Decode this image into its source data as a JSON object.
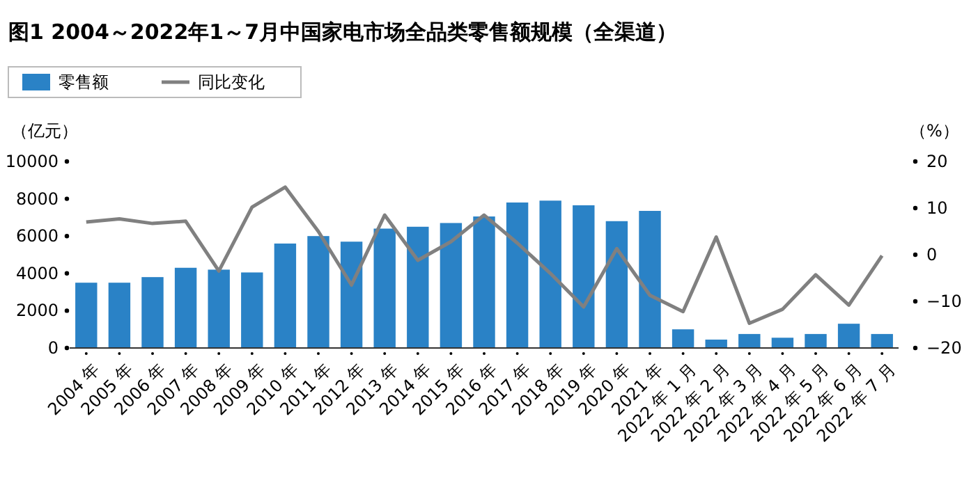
{
  "chart_data": {
    "type": "bar",
    "title": "图1  2004～2022年1～7月中国家电市场全品类零售额规模（全渠道）",
    "ylabel": "（亿元）",
    "y2label": "（%）",
    "categories": [
      "2004 年",
      "2005 年",
      "2006 年",
      "2007 年",
      "2008 年",
      "2009 年",
      "2010 年",
      "2011 年",
      "2012 年",
      "2013 年",
      "2014 年",
      "2015 年",
      "2016 年",
      "2017 年",
      "2018 年",
      "2019 年",
      "2020 年",
      "2021 年",
      "2022 年 1 月",
      "2022 年 2 月",
      "2022 年 3 月",
      "2022 年 4 月",
      "2022 年 5 月",
      "2022 年 6 月",
      "2022 年 7 月"
    ],
    "series": [
      {
        "name": "零售额",
        "color": "#2a82c6",
        "values": [
          3500,
          3500,
          3800,
          4300,
          4200,
          4050,
          5600,
          6000,
          5700,
          6400,
          6500,
          6700,
          7050,
          7800,
          7900,
          7650,
          6800,
          7350,
          1000,
          450,
          750,
          550,
          750,
          1300,
          750
        ]
      },
      {
        "name": "同比变化",
        "type": "line",
        "axis": "y2",
        "color": "#808080",
        "values": [
          7.0,
          7.7,
          6.7,
          7.2,
          -3.5,
          10.2,
          14.5,
          5.0,
          -6.5,
          8.5,
          -1.2,
          2.8,
          8.5,
          2.5,
          -4.0,
          -11.2,
          1.3,
          -8.7,
          -12.2,
          3.8,
          -14.7,
          -11.7,
          -4.3,
          -10.8,
          -0.2
        ]
      }
    ],
    "ylim": [
      0,
      10000
    ],
    "yticks": [
      0,
      2000,
      4000,
      6000,
      8000,
      10000
    ],
    "y2lim": [
      -20,
      20
    ],
    "y2ticks": [
      -20,
      -10,
      0,
      10,
      20
    ],
    "legend": "top left",
    "grid": false,
    "marker": "none",
    "line_style": "solid"
  }
}
